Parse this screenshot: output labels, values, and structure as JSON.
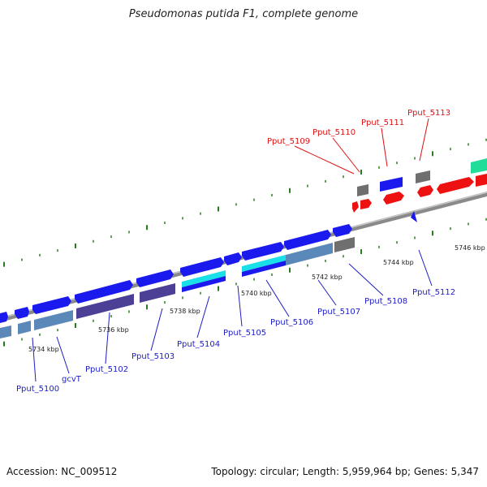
{
  "title": "Pseudomonas putida F1, complete genome",
  "footer": {
    "accession": "Accession: NC_009512",
    "summary": "Topology: circular; Length: 5,959,964 bp; Genes: 5,347"
  },
  "colors": {
    "backbone": "#8a8a8a",
    "tick": "#2a7d1e",
    "forward_gene": "#1a1aee",
    "forward_cds": "#5a88b8",
    "cds_purple": "#4b3f96",
    "cds_cyan": "#19e0e8",
    "gray_gene": "#6f6f6f",
    "red_gene": "#ee1111",
    "teal_gene": "#22dd9a",
    "label_blue": "#1c1cc8",
    "label_red": "#dd1010"
  },
  "ticks": [
    "5734 kbp",
    "5736 kbp",
    "5738 kbp",
    "5740 kbp",
    "5742 kbp",
    "5744 kbp",
    "5746 kbp"
  ],
  "labels_top": [
    "Pput_5109",
    "Pput_5110",
    "Pput_5111",
    "Pput_5113"
  ],
  "labels_bottom": [
    "Pput_5100",
    "gcvT",
    "Pput_5102",
    "Pput_5103",
    "Pput_5104",
    "Pput_5105",
    "Pput_5106",
    "Pput_5107",
    "Pput_5108",
    "Pput_5112"
  ]
}
